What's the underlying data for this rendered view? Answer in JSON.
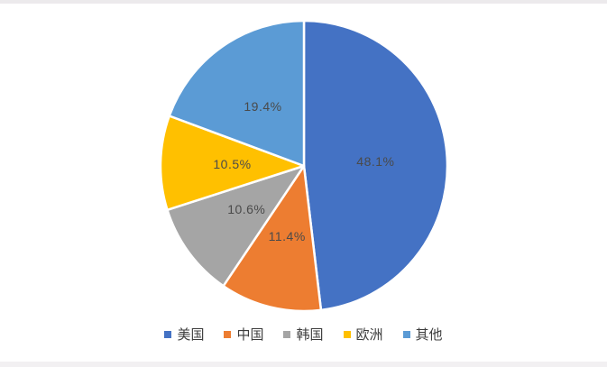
{
  "page": {
    "background": "#ffffff",
    "top_strip_color": "#eceaec",
    "bottom_strip_color": "#f2f0f2"
  },
  "chart_data": {
    "type": "pie",
    "title": "",
    "categories": [
      "美国",
      "中国",
      "韩国",
      "欧洲",
      "其他"
    ],
    "values": [
      48.1,
      11.4,
      10.6,
      10.5,
      19.4
    ],
    "data_labels": [
      "48.1%",
      "11.4%",
      "10.6%",
      "10.5%",
      "19.4%"
    ],
    "colors": [
      "#4472C4",
      "#ED7D31",
      "#A5A5A5",
      "#FFC000",
      "#5B9BD5"
    ],
    "start_angle_deg": 0,
    "direction": "clockwise",
    "slice_border_color": "#ffffff",
    "data_label_color": "#4a4a4a",
    "legend_position": "bottom",
    "legend_text_color": "#3d3d3d",
    "legend_items": [
      {
        "label": "美国",
        "color": "#4472C4"
      },
      {
        "label": "中国",
        "color": "#ED7D31"
      },
      {
        "label": "韩国",
        "color": "#A5A5A5"
      },
      {
        "label": "欧洲",
        "color": "#FFC000"
      },
      {
        "label": "其他",
        "color": "#5B9BD5"
      }
    ]
  }
}
